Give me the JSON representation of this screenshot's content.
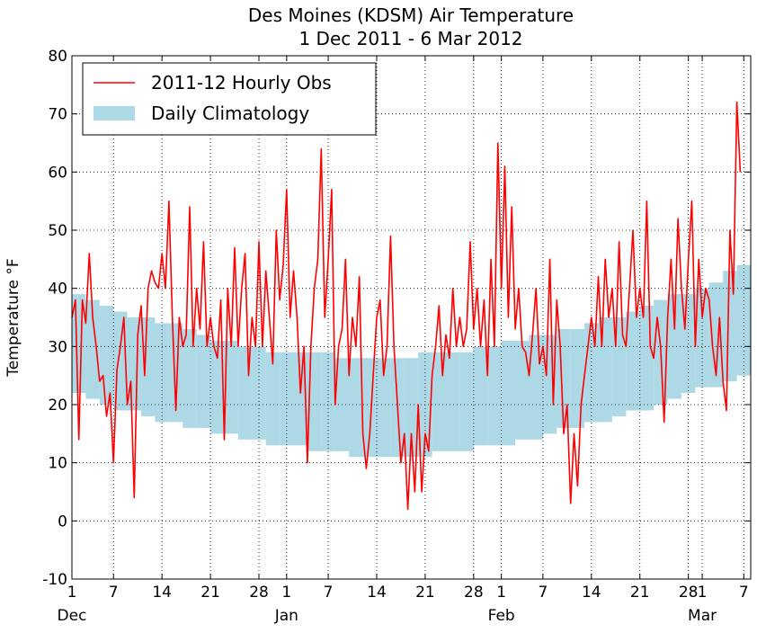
{
  "chart_data": {
    "type": "line",
    "title": "Des Moines (KDSM) Air Temperature",
    "subtitle": "1 Dec 2011 - 6 Mar 2012",
    "y_label": "Temperature °F",
    "xlim": [
      "2011-12-01",
      "2012-03-08"
    ],
    "ylim": [
      -10,
      80
    ],
    "yticks": [
      -10,
      0,
      10,
      20,
      30,
      40,
      50,
      60,
      70,
      80
    ],
    "xticks": [
      {
        "value": "2011-12-01",
        "label": "1"
      },
      {
        "value": "2011-12-07",
        "label": "7"
      },
      {
        "value": "2011-12-14",
        "label": "14"
      },
      {
        "value": "2011-12-21",
        "label": "21"
      },
      {
        "value": "2011-12-28",
        "label": "28"
      },
      {
        "value": "2012-01-01",
        "label": "1"
      },
      {
        "value": "2012-01-07",
        "label": "7"
      },
      {
        "value": "2012-01-14",
        "label": "14"
      },
      {
        "value": "2012-01-21",
        "label": "21"
      },
      {
        "value": "2012-01-28",
        "label": "28"
      },
      {
        "value": "2012-02-01",
        "label": "1"
      },
      {
        "value": "2012-02-07",
        "label": "7"
      },
      {
        "value": "2012-02-14",
        "label": "14"
      },
      {
        "value": "2012-02-21",
        "label": "21"
      },
      {
        "value": "2012-02-28",
        "label": "28"
      },
      {
        "value": "2012-03-01",
        "label": "1"
      },
      {
        "value": "2012-03-07",
        "label": "7"
      }
    ],
    "xtick_months": [
      {
        "value": "2011-12-01",
        "label": "Dec"
      },
      {
        "value": "2012-01-01",
        "label": "Jan"
      },
      {
        "value": "2012-02-01",
        "label": "Feb"
      },
      {
        "value": "2012-03-01",
        "label": "Mar"
      }
    ],
    "grid": true,
    "legend": "upper left",
    "series": [
      {
        "name": "2011-12 Hourly Obs",
        "color": "#ff0000",
        "x": [
          "2011-12-01T00",
          "2011-12-01T12",
          "2011-12-02T00",
          "2011-12-02T12",
          "2011-12-03T00",
          "2011-12-03T12",
          "2011-12-04T00",
          "2011-12-04T12",
          "2011-12-05T00",
          "2011-12-05T12",
          "2011-12-06T00",
          "2011-12-06T12",
          "2011-12-07T00",
          "2011-12-07T12",
          "2011-12-08T00",
          "2011-12-08T12",
          "2011-12-09T00",
          "2011-12-09T12",
          "2011-12-10T00",
          "2011-12-10T12",
          "2011-12-11T00",
          "2011-12-11T12",
          "2011-12-12T00",
          "2011-12-12T12",
          "2011-12-13T00",
          "2011-12-13T12",
          "2011-12-14T00",
          "2011-12-14T12",
          "2011-12-15T00",
          "2011-12-15T12",
          "2011-12-16T00",
          "2011-12-16T12",
          "2011-12-17T00",
          "2011-12-17T12",
          "2011-12-18T00",
          "2011-12-18T12",
          "2011-12-19T00",
          "2011-12-19T12",
          "2011-12-20T00",
          "2011-12-20T12",
          "2011-12-21T00",
          "2011-12-21T12",
          "2011-12-22T00",
          "2011-12-22T12",
          "2011-12-23T00",
          "2011-12-23T12",
          "2011-12-24T00",
          "2011-12-24T12",
          "2011-12-25T00",
          "2011-12-25T12",
          "2011-12-26T00",
          "2011-12-26T12",
          "2011-12-27T00",
          "2011-12-27T12",
          "2011-12-28T00",
          "2011-12-28T12",
          "2011-12-29T00",
          "2011-12-29T12",
          "2011-12-30T00",
          "2011-12-30T12",
          "2011-12-31T00",
          "2011-12-31T12",
          "2012-01-01T00",
          "2012-01-01T12",
          "2012-01-02T00",
          "2012-01-02T12",
          "2012-01-03T00",
          "2012-01-03T12",
          "2012-01-04T00",
          "2012-01-04T12",
          "2012-01-05T00",
          "2012-01-05T12",
          "2012-01-06T00",
          "2012-01-06T12",
          "2012-01-07T00",
          "2012-01-07T12",
          "2012-01-08T00",
          "2012-01-08T12",
          "2012-01-09T00",
          "2012-01-09T12",
          "2012-01-10T00",
          "2012-01-10T12",
          "2012-01-11T00",
          "2012-01-11T12",
          "2012-01-12T00",
          "2012-01-12T12",
          "2012-01-13T00",
          "2012-01-13T12",
          "2012-01-14T00",
          "2012-01-14T12",
          "2012-01-15T00",
          "2012-01-15T12",
          "2012-01-16T00",
          "2012-01-16T12",
          "2012-01-17T00",
          "2012-01-17T12",
          "2012-01-18T00",
          "2012-01-18T12",
          "2012-01-19T00",
          "2012-01-19T12",
          "2012-01-20T00",
          "2012-01-20T12",
          "2012-01-21T00",
          "2012-01-21T12",
          "2012-01-22T00",
          "2012-01-22T12",
          "2012-01-23T00",
          "2012-01-23T12",
          "2012-01-24T00",
          "2012-01-24T12",
          "2012-01-25T00",
          "2012-01-25T12",
          "2012-01-26T00",
          "2012-01-26T12",
          "2012-01-27T00",
          "2012-01-27T12",
          "2012-01-28T00",
          "2012-01-28T12",
          "2012-01-29T00",
          "2012-01-29T12",
          "2012-01-30T00",
          "2012-01-30T12",
          "2012-01-31T00",
          "2012-01-31T12",
          "2012-02-01T00",
          "2012-02-01T12",
          "2012-02-02T00",
          "2012-02-02T12",
          "2012-02-03T00",
          "2012-02-03T12",
          "2012-02-04T00",
          "2012-02-04T12",
          "2012-02-05T00",
          "2012-02-05T12",
          "2012-02-06T00",
          "2012-02-06T12",
          "2012-02-07T00",
          "2012-02-07T12",
          "2012-02-08T00",
          "2012-02-08T12",
          "2012-02-09T00",
          "2012-02-09T12",
          "2012-02-10T00",
          "2012-02-10T12",
          "2012-02-11T00",
          "2012-02-11T12",
          "2012-02-12T00",
          "2012-02-12T12",
          "2012-02-13T00",
          "2012-02-13T12",
          "2012-02-14T00",
          "2012-02-14T12",
          "2012-02-15T00",
          "2012-02-15T12",
          "2012-02-16T00",
          "2012-02-16T12",
          "2012-02-17T00",
          "2012-02-17T12",
          "2012-02-18T00",
          "2012-02-18T12",
          "2012-02-19T00",
          "2012-02-19T12",
          "2012-02-20T00",
          "2012-02-20T12",
          "2012-02-21T00",
          "2012-02-21T12",
          "2012-02-22T00",
          "2012-02-22T12",
          "2012-02-23T00",
          "2012-02-23T12",
          "2012-02-24T00",
          "2012-02-24T12",
          "2012-02-25T00",
          "2012-02-25T12",
          "2012-02-26T00",
          "2012-02-26T12",
          "2012-02-27T00",
          "2012-02-27T12",
          "2012-02-28T00",
          "2012-02-28T12",
          "2012-02-29T00",
          "2012-02-29T12",
          "2012-03-01T00",
          "2012-03-01T12",
          "2012-03-02T00",
          "2012-03-02T12",
          "2012-03-03T00",
          "2012-03-03T12",
          "2012-03-04T00",
          "2012-03-04T12",
          "2012-03-05T00",
          "2012-03-05T12",
          "2012-03-06T00",
          "2012-03-06T12"
        ],
        "values": [
          35,
          38,
          14,
          38,
          34,
          46,
          35,
          30,
          24,
          25,
          18,
          22,
          10,
          26,
          30,
          35,
          20,
          24,
          4,
          32,
          37,
          25,
          40,
          43,
          41,
          40,
          46,
          40,
          55,
          35,
          19,
          35,
          30,
          32,
          54,
          30,
          40,
          33,
          48,
          30,
          35,
          30,
          28,
          38,
          14,
          40,
          30,
          47,
          30,
          40,
          46,
          25,
          35,
          30,
          48,
          30,
          43,
          35,
          27,
          50,
          38,
          44,
          57,
          35,
          43,
          35,
          22,
          30,
          10,
          30,
          40,
          45,
          64,
          35,
          45,
          57,
          20,
          30,
          33,
          45,
          25,
          35,
          30,
          42,
          15,
          9,
          15,
          25,
          35,
          38,
          25,
          30,
          49,
          30,
          20,
          10,
          15,
          2,
          15,
          5,
          20,
          5,
          15,
          12,
          25,
          30,
          37,
          25,
          32,
          28,
          40,
          30,
          35,
          30,
          33,
          48,
          33,
          40,
          30,
          38,
          25,
          45,
          30,
          65,
          40,
          61,
          35,
          54,
          33,
          40,
          30,
          29,
          25,
          32,
          40,
          27,
          30,
          25,
          45,
          20,
          38,
          30,
          15,
          20,
          3,
          15,
          6,
          20,
          25,
          30,
          35,
          30,
          42,
          30,
          45,
          35,
          40,
          30,
          48,
          32,
          30,
          40,
          50,
          35,
          40,
          35,
          55,
          30,
          28,
          35,
          30,
          17,
          35,
          45,
          33,
          52,
          40,
          33,
          45,
          55,
          30,
          45,
          35,
          40,
          38,
          30,
          25,
          35,
          24,
          19,
          50,
          39,
          72,
          60
        ]
      },
      {
        "name": "Daily Climatology",
        "color": "#add8e6",
        "x": [
          "2011-12-01",
          "2011-12-03",
          "2011-12-05",
          "2011-12-07",
          "2011-12-09",
          "2011-12-11",
          "2011-12-13",
          "2011-12-15",
          "2011-12-17",
          "2011-12-19",
          "2011-12-21",
          "2011-12-23",
          "2011-12-25",
          "2011-12-27",
          "2011-12-29",
          "2011-12-31",
          "2012-01-02",
          "2012-01-04",
          "2012-01-06",
          "2012-01-08",
          "2012-01-10",
          "2012-01-12",
          "2012-01-14",
          "2012-01-16",
          "2012-01-18",
          "2012-01-20",
          "2012-01-22",
          "2012-01-24",
          "2012-01-26",
          "2012-01-28",
          "2012-01-30",
          "2012-02-01",
          "2012-02-03",
          "2012-02-05",
          "2012-02-07",
          "2012-02-09",
          "2012-02-11",
          "2012-02-13",
          "2012-02-15",
          "2012-02-17",
          "2012-02-19",
          "2012-02-21",
          "2012-02-23",
          "2012-02-25",
          "2012-02-27",
          "2012-02-29",
          "2012-03-02",
          "2012-03-04",
          "2012-03-06"
        ],
        "high": [
          39,
          38,
          37,
          36,
          35,
          35,
          34,
          34,
          33,
          32,
          31,
          31,
          30,
          30,
          29,
          29,
          29,
          29,
          29,
          28,
          28,
          28,
          28,
          28,
          28,
          29,
          29,
          29,
          29,
          30,
          30,
          31,
          31,
          32,
          32,
          33,
          33,
          34,
          35,
          35,
          36,
          37,
          38,
          39,
          39,
          40,
          41,
          43,
          44
        ],
        "low": [
          22,
          21,
          20,
          19,
          19,
          18,
          17,
          17,
          16,
          16,
          15,
          15,
          14,
          14,
          13,
          13,
          13,
          12,
          12,
          12,
          11,
          11,
          11,
          11,
          11,
          11,
          12,
          12,
          12,
          13,
          13,
          13,
          14,
          14,
          15,
          16,
          16,
          17,
          17,
          18,
          19,
          19,
          20,
          21,
          22,
          23,
          23,
          24,
          25
        ]
      }
    ]
  }
}
